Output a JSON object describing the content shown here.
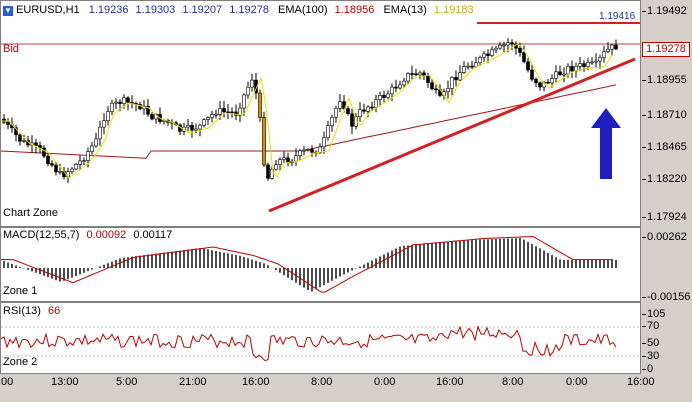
{
  "header": {
    "symbol": "EURUSD,H1",
    "ohlc": [
      "1.19236",
      "1.19303",
      "1.19207",
      "1.19278"
    ],
    "ema100_label": "EMA(100)",
    "ema100_value": "1.18956",
    "ema13_label": "EMA(13)",
    "ema13_value": "1.19183"
  },
  "main": {
    "bid_label": "Bid",
    "zone_label": "Chart Zone",
    "top_line_label": "1.19416",
    "current_price": "1.19278",
    "y_ticks": [
      "1.19492",
      "1.19278",
      "1.18955",
      "1.18710",
      "1.18465",
      "1.18220",
      "1.17924"
    ]
  },
  "macd": {
    "label": "MACD(12,55,7)",
    "value1": "0.00092",
    "value2": "0.00117",
    "zone_label": "Zone 1",
    "y_ticks": [
      "0.00262",
      "-0.00156"
    ]
  },
  "rsi": {
    "label": "RSI(13)",
    "value": "66",
    "zone_label": "Zone 2",
    "y_ticks": [
      "105",
      "70",
      "50",
      "30",
      "0"
    ]
  },
  "x_axis": [
    "00",
    "13:00",
    "5:00",
    "21:00",
    "16:00",
    "8:00",
    "0:00",
    "16:00",
    "8:00",
    "0:00",
    "16:00"
  ],
  "colors": {
    "bull_candle": "#ffffff",
    "bear_candle": "#000000",
    "down_gap_candle": "#e08a00",
    "ema_fast": "#e8e000",
    "ema_slow": "#a01818",
    "trendline": "#d42020",
    "arrow": "#2020c0",
    "macd_signal": "#c00000"
  },
  "icons": {
    "symbol_arrow": "down-arrow-icon",
    "annotation_arrow": "up-arrow-icon"
  }
}
